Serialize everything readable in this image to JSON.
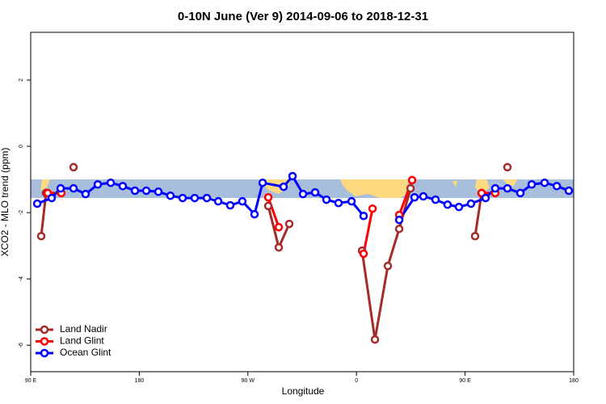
{
  "chart_data": {
    "type": "line",
    "title": "0-10N June (Ver 9)   2014-09-06 to 2018-12-31",
    "x_label": "Longitude",
    "y_label": "XCO2 - MLO trend (ppm)",
    "xlim": [
      90,
      540
    ],
    "ylim": [
      -6.8,
      3.44
    ],
    "xticks": [
      {
        "value": 90,
        "label": "90 E"
      },
      {
        "value": 180,
        "label": "180"
      },
      {
        "value": 270,
        "label": "90 W"
      },
      {
        "value": 360,
        "label": "0"
      },
      {
        "value": 450,
        "label": "90 E"
      },
      {
        "value": 540,
        "label": "180"
      }
    ],
    "yticks": [
      -6,
      -4,
      -2,
      0,
      2
    ],
    "legend": "bottom-left",
    "series": [
      {
        "name": "Land Nadir",
        "color": "#a52a2a",
        "x": [
          98.7,
          102.7,
          null,
          125.5,
          null,
          286.9,
          295.6,
          304.3,
          null,
          364.6,
          375.3,
          386.0,
          395.4,
          404.8,
          null,
          458.3,
          463.7,
          null,
          485.1
        ],
        "values": [
          -2.71,
          -1.41,
          null,
          -0.63,
          null,
          -1.8,
          -3.05,
          -2.34,
          null,
          -3.15,
          -5.83,
          -3.61,
          -2.49,
          -1.27,
          null,
          -2.71,
          -1.41,
          null,
          -0.63
        ]
      },
      {
        "name": "Land Glint",
        "color": "#ff0000",
        "x": [
          104.1,
          115.4,
          null,
          286.9,
          295.6,
          null,
          365.9,
          373.3,
          null,
          395.4,
          406.1,
          null,
          463.7,
          475.0
        ],
        "values": [
          -1.41,
          -1.41,
          null,
          -1.54,
          -2.44,
          null,
          -3.24,
          -1.88,
          null,
          -2.07,
          -1.02,
          null,
          -1.41,
          -1.41
        ]
      },
      {
        "name": "Ocean Glint",
        "color": "#0000ff",
        "x": [
          95.4,
          107.4,
          114.8,
          125.5,
          135.5,
          145.6,
          156.3,
          166.3,
          176.4,
          185.8,
          195.8,
          205.8,
          215.9,
          225.9,
          236.0,
          245.4,
          255.4,
          265.4,
          275.5,
          282.2,
          299.6,
          307.0,
          315.7,
          325.7,
          335.1,
          345.1,
          355.9,
          365.9,
          null,
          395.4,
          408.1,
          415.4,
          425.5,
          435.5,
          444.9,
          454.9,
          467.0,
          475.0,
          485.1,
          495.8,
          505.2,
          515.9,
          526.0,
          536.0
        ],
        "values": [
          -1.73,
          -1.56,
          -1.27,
          -1.27,
          -1.44,
          -1.15,
          -1.1,
          -1.2,
          -1.34,
          -1.34,
          -1.37,
          -1.49,
          -1.56,
          -1.56,
          -1.56,
          -1.66,
          -1.78,
          -1.66,
          -2.05,
          -1.1,
          -1.22,
          -0.9,
          -1.44,
          -1.39,
          -1.61,
          -1.71,
          -1.66,
          -2.1,
          null,
          -2.22,
          -1.54,
          -1.51,
          -1.61,
          -1.76,
          -1.83,
          -1.73,
          -1.56,
          -1.27,
          -1.27,
          -1.41,
          -1.15,
          -1.1,
          -1.2,
          -1.34
        ]
      }
    ]
  }
}
